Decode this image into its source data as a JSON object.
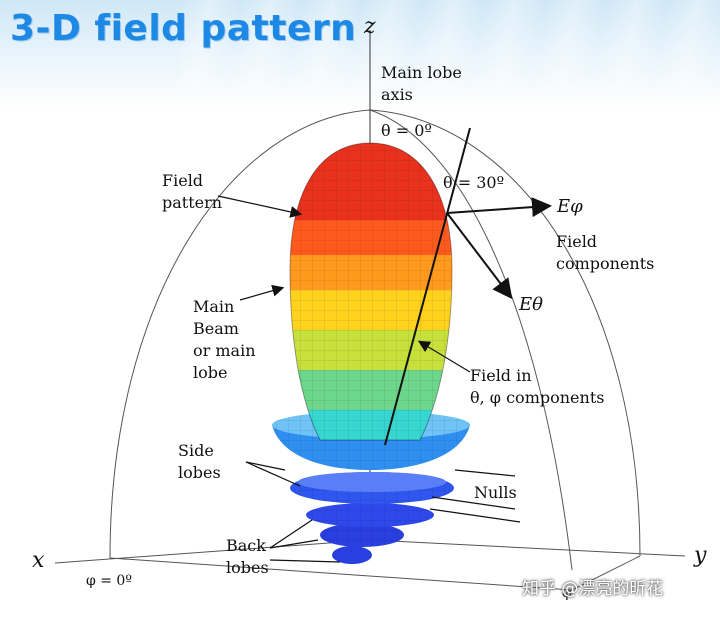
{
  "title": "3-D field pattern",
  "axes": {
    "z": "z",
    "x": "x",
    "y": "y"
  },
  "labels": {
    "main_lobe_axis": [
      "Main lobe",
      "axis"
    ],
    "theta0": "θ = 0º",
    "theta30": "θ = 30º",
    "field_pattern": [
      "Field",
      "pattern"
    ],
    "e_phi": "Eφ",
    "e_theta": "Eθ",
    "field_components": [
      "Field",
      "components"
    ],
    "main_beam": [
      "Main",
      "Beam",
      "or main",
      "lobe"
    ],
    "field_in": [
      "Field in",
      "θ, φ components"
    ],
    "side_lobes": [
      "Side",
      "lobes"
    ],
    "nulls": "Nulls",
    "back_lobes": [
      "Back",
      "lobes"
    ],
    "phi0": "φ = 0º",
    "phi_y": "φ"
  },
  "watermark": "知乎 @漂亮的昕花",
  "colors": {
    "title": "#1e88e5",
    "lobe_bands": [
      "#e8321e",
      "#ff5a1e",
      "#ff9a1e",
      "#ffd21e",
      "#c8e03c",
      "#6cd68a",
      "#38d6d0",
      "#30b8f0"
    ],
    "side_lobe": "#2f8ff0",
    "back_lobe": "#2a3fe0"
  }
}
